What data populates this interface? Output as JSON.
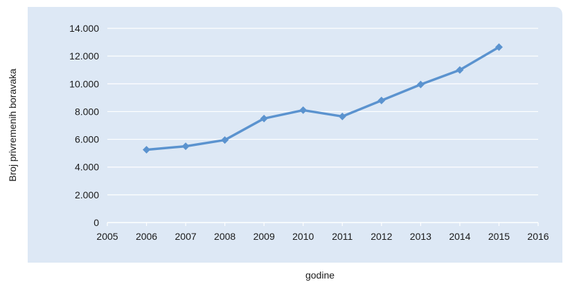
{
  "colors": {
    "plot_background": "#dde8f5",
    "gridline": "#ffffff",
    "series_line": "#5b93cf",
    "text": "#1a1a1a"
  },
  "chart_data": {
    "type": "scatter",
    "title": "",
    "xlabel": "godine",
    "ylabel": "Broj privremenih boravaka",
    "xlim": [
      2005,
      2016
    ],
    "ylim": [
      0,
      14000
    ],
    "grid": true,
    "legend": "none",
    "x_ticks": [
      "2005",
      "2006",
      "2007",
      "2008",
      "2009",
      "2010",
      "2011",
      "2012",
      "2013",
      "2014",
      "2015",
      "2016"
    ],
    "y_ticks": [
      "0",
      "2.000",
      "4.000",
      "6.000",
      "8.000",
      "10.000",
      "12.000",
      "14.000"
    ],
    "series": [
      {
        "marker": "diamond",
        "line": "straight",
        "x": [
          2006,
          2007,
          2008,
          2009,
          2010,
          2011,
          2012,
          2013,
          2014,
          2015
        ],
        "y": [
          5250,
          5500,
          5950,
          7500,
          8100,
          7650,
          8800,
          9950,
          11000,
          12650
        ]
      }
    ]
  }
}
